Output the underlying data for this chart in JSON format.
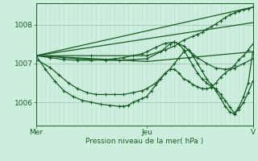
{
  "bg_color": "#cceedd",
  "plot_bg_color": "#cceedd",
  "grid_color_v": "#bbddcc",
  "grid_color_h": "#aaccbb",
  "line_color": "#1a5c28",
  "xlabel": "Pression niveau de la mer( hPa )",
  "xlabel_color": "#1a5c28",
  "xtick_labels": [
    "Mer",
    "Jeu",
    "V"
  ],
  "xtick_positions": [
    0,
    48,
    94
  ],
  "ylim": [
    1005.4,
    1008.55
  ],
  "yticks": [
    1006,
    1007,
    1008
  ],
  "line_width": 0.9,
  "marker_size": 2.5,
  "curves": [
    {
      "x": [
        0,
        94
      ],
      "y": [
        1007.2,
        1008.45
      ],
      "markers": false
    },
    {
      "x": [
        0,
        94
      ],
      "y": [
        1007.2,
        1008.05
      ],
      "markers": false
    },
    {
      "x": [
        0,
        48,
        94
      ],
      "y": [
        1007.2,
        1007.05,
        1007.3
      ],
      "markers": false
    },
    {
      "x": [
        0,
        4,
        8,
        12,
        16,
        20,
        24,
        28,
        32,
        36,
        38,
        40,
        42,
        44,
        46,
        48,
        50,
        52,
        54,
        56,
        58,
        60,
        62,
        64,
        66,
        68,
        70,
        72,
        74,
        76,
        78,
        80,
        82,
        84,
        86,
        88,
        90,
        92,
        94
      ],
      "y": [
        1007.2,
        1006.85,
        1006.55,
        1006.3,
        1006.15,
        1006.05,
        1006.0,
        1005.95,
        1005.92,
        1005.9,
        1005.9,
        1005.92,
        1006.0,
        1006.05,
        1006.1,
        1006.15,
        1006.3,
        1006.45,
        1006.6,
        1006.75,
        1006.85,
        1006.85,
        1006.75,
        1006.6,
        1006.55,
        1006.45,
        1006.4,
        1006.35,
        1006.35,
        1006.38,
        1006.5,
        1006.65,
        1006.75,
        1006.85,
        1006.95,
        1007.1,
        1007.2,
        1007.35,
        1007.5
      ],
      "markers": true
    },
    {
      "x": [
        0,
        6,
        10,
        14,
        18,
        22,
        26,
        30,
        34,
        38,
        42,
        46,
        48,
        52,
        56,
        58,
        60,
        62,
        64,
        66,
        68,
        70,
        72,
        74,
        76,
        78,
        80,
        82,
        84,
        86,
        88,
        90,
        92,
        94
      ],
      "y": [
        1007.1,
        1006.9,
        1006.7,
        1006.5,
        1006.35,
        1006.25,
        1006.2,
        1006.2,
        1006.2,
        1006.2,
        1006.25,
        1006.3,
        1006.35,
        1006.5,
        1006.75,
        1006.85,
        1007.0,
        1007.15,
        1007.3,
        1007.35,
        1007.2,
        1007.0,
        1006.8,
        1006.6,
        1006.45,
        1006.3,
        1006.1,
        1005.9,
        1005.75,
        1005.7,
        1005.82,
        1006.0,
        1006.25,
        1006.55
      ],
      "markers": true
    },
    {
      "x": [
        0,
        6,
        12,
        18,
        24,
        30,
        34,
        38,
        42,
        46,
        48,
        52,
        56,
        60,
        64,
        66,
        70,
        74,
        78,
        82,
        86,
        90,
        94
      ],
      "y": [
        1007.2,
        1007.15,
        1007.1,
        1007.08,
        1007.08,
        1007.1,
        1007.12,
        1007.15,
        1007.2,
        1007.25,
        1007.3,
        1007.42,
        1007.52,
        1007.55,
        1007.45,
        1007.35,
        1007.15,
        1007.0,
        1006.88,
        1006.85,
        1006.88,
        1007.0,
        1007.12
      ],
      "markers": true
    },
    {
      "x": [
        0,
        6,
        12,
        18,
        24,
        30,
        36,
        42,
        48,
        54,
        58,
        60,
        62,
        64,
        66,
        68,
        70,
        72,
        74,
        76,
        78,
        80,
        82,
        84,
        86,
        88,
        90,
        92,
        94
      ],
      "y": [
        1007.2,
        1007.18,
        1007.15,
        1007.12,
        1007.1,
        1007.08,
        1007.08,
        1007.1,
        1007.12,
        1007.3,
        1007.5,
        1007.55,
        1007.5,
        1007.35,
        1007.15,
        1006.95,
        1006.75,
        1006.6,
        1006.5,
        1006.4,
        1006.35,
        1006.2,
        1006.05,
        1005.88,
        1005.72,
        1005.88,
        1006.15,
        1006.5,
        1007.3
      ],
      "markers": true
    },
    {
      "x": [
        0,
        24,
        48,
        56,
        60,
        64,
        68,
        70,
        72,
        74,
        76,
        78,
        80,
        82,
        84,
        86,
        88,
        90,
        92,
        94
      ],
      "y": [
        1007.2,
        1007.2,
        1007.2,
        1007.35,
        1007.45,
        1007.6,
        1007.7,
        1007.75,
        1007.8,
        1007.88,
        1007.95,
        1008.02,
        1008.1,
        1008.18,
        1008.25,
        1008.3,
        1008.35,
        1008.38,
        1008.4,
        1008.45
      ],
      "markers": true
    }
  ]
}
